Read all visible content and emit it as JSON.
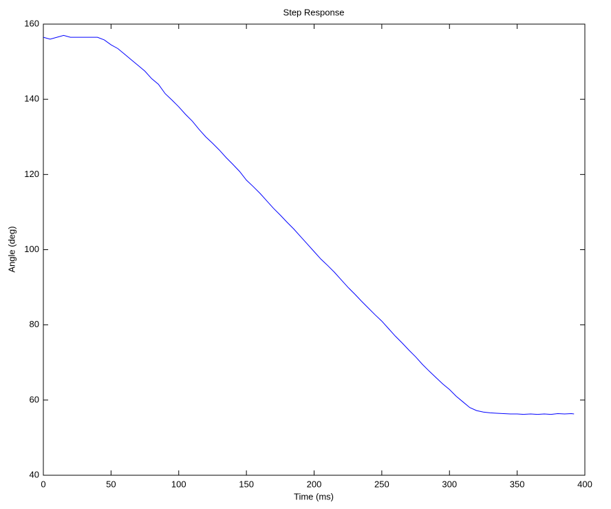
{
  "chart_data": {
    "type": "line",
    "title": "Step Response",
    "x_label": "Time (ms)",
    "y_label": "Angle (deg)",
    "x": [
      0,
      5,
      10,
      15,
      20,
      25,
      30,
      35,
      40,
      45,
      50,
      55,
      60,
      65,
      70,
      75,
      80,
      85,
      90,
      95,
      100,
      105,
      110,
      115,
      120,
      125,
      130,
      135,
      140,
      145,
      150,
      155,
      160,
      165,
      170,
      175,
      180,
      185,
      190,
      195,
      200,
      205,
      210,
      215,
      220,
      225,
      230,
      235,
      240,
      245,
      250,
      255,
      260,
      265,
      270,
      275,
      280,
      285,
      290,
      295,
      300,
      305,
      310,
      315,
      320,
      325,
      330,
      335,
      340,
      345,
      350,
      355,
      360,
      365,
      370,
      375,
      380,
      385,
      390,
      392
    ],
    "series": [
      {
        "name": "Angle",
        "color": "#0000ff",
        "values": [
          156.5,
          156,
          156.5,
          157,
          156.5,
          156.5,
          156.5,
          156.5,
          156.5,
          155.8,
          154.5,
          153.5,
          152,
          150.5,
          149,
          147.5,
          145.5,
          144,
          141.5,
          139.8,
          138,
          136,
          134.2,
          132,
          130,
          128.3,
          126.5,
          124.5,
          122.7,
          120.8,
          118.5,
          116.8,
          115,
          113,
          111,
          109.2,
          107.3,
          105.5,
          103.5,
          101.5,
          99.5,
          97.5,
          95.8,
          94,
          92,
          90,
          88.2,
          86.3,
          84.5,
          82.7,
          81,
          79,
          77,
          75.2,
          73.3,
          71.5,
          69.5,
          67.7,
          66,
          64.3,
          62.8,
          61,
          59.5,
          58,
          57.2,
          56.8,
          56.6,
          56.5,
          56.4,
          56.3,
          56.3,
          56.2,
          56.3,
          56.2,
          56.3,
          56.2,
          56.4,
          56.3,
          56.4,
          56.3
        ]
      }
    ],
    "xlim": [
      0,
      400
    ],
    "xticks": [
      0,
      50,
      100,
      150,
      200,
      250,
      300,
      350,
      400
    ],
    "ylim": [
      40,
      160
    ],
    "yticks": [
      40,
      60,
      80,
      100,
      120,
      140,
      160
    ]
  }
}
